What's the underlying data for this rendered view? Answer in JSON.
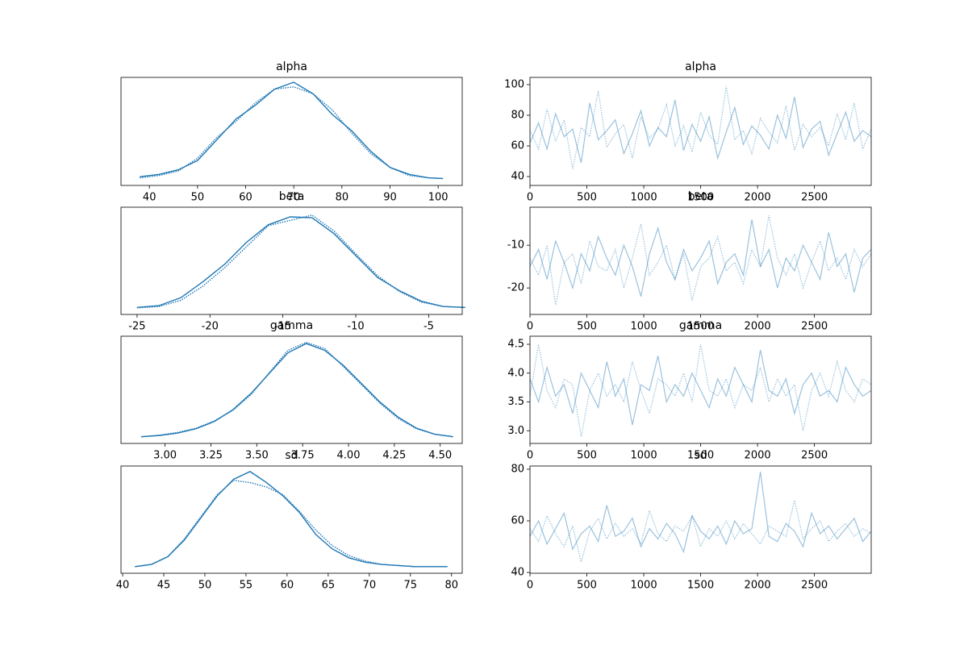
{
  "chart_data": [
    {
      "type": "kde",
      "title": "alpha",
      "x": [
        38,
        42,
        46,
        50,
        54,
        58,
        62,
        66,
        70,
        74,
        78,
        82,
        86,
        90,
        94,
        98,
        101
      ],
      "xlim": [
        34.1,
        105
      ],
      "xticks": [
        40,
        50,
        60,
        70,
        80,
        90,
        100
      ],
      "ylim": [
        -0.0028,
        0.0441
      ],
      "series": [
        {
          "color": "#1f77b4",
          "linestyle": "solid",
          "alpha": 1,
          "values": [
            0.001,
            0.002,
            0.004,
            0.008,
            0.017,
            0.026,
            0.032,
            0.039,
            0.042,
            0.037,
            0.028,
            0.021,
            0.012,
            0.005,
            0.002,
            0.0005,
            0.0002
          ]
        },
        {
          "color": "#1f77b4",
          "linestyle": "dotted",
          "alpha": 1,
          "values": [
            0.0005,
            0.0015,
            0.0035,
            0.009,
            0.018,
            0.025,
            0.033,
            0.039,
            0.04,
            0.037,
            0.03,
            0.02,
            0.011,
            0.005,
            0.0015,
            0.0005,
            0.0002
          ]
        }
      ]
    },
    {
      "type": "trace",
      "title": "alpha",
      "x": [
        0,
        75,
        150,
        225,
        300,
        375,
        450,
        525,
        600,
        675,
        750,
        825,
        900,
        975,
        1050,
        1125,
        1200,
        1275,
        1350,
        1425,
        1500,
        1575,
        1650,
        1725,
        1800,
        1875,
        1950,
        2025,
        2100,
        2175,
        2250,
        2325,
        2400,
        2475,
        2550,
        2625,
        2700,
        2775,
        2850,
        2925,
        2999
      ],
      "xlim": [
        0,
        2999
      ],
      "xticks": [
        0,
        500,
        1000,
        1500,
        2000,
        2500
      ],
      "ylim": [
        34.2,
        104.7
      ],
      "yticks": [
        40,
        60,
        80,
        100
      ],
      "series": [
        {
          "color": "#1f77b4",
          "linestyle": "solid",
          "alpha": 0.45,
          "values": [
            62,
            75,
            58,
            81,
            66,
            71,
            49,
            88,
            64,
            70,
            77,
            55,
            68,
            83,
            60,
            72,
            66,
            90,
            57,
            74,
            63,
            79,
            52,
            69,
            85,
            61,
            73,
            67,
            58,
            80,
            65,
            92,
            59,
            71,
            76,
            54,
            68,
            82,
            63,
            70,
            66
          ]
        },
        {
          "color": "#1f77b4",
          "linestyle": "dotted",
          "alpha": 0.45,
          "values": [
            70,
            58,
            84,
            63,
            77,
            45,
            72,
            66,
            96,
            59,
            68,
            74,
            52,
            79,
            65,
            71,
            87,
            60,
            73,
            56,
            82,
            67,
            61,
            99,
            64,
            70,
            55,
            78,
            69,
            62,
            86,
            57,
            74,
            66,
            72,
            60,
            81,
            64,
            88,
            58,
            71
          ]
        }
      ]
    },
    {
      "type": "kde",
      "title": "beta",
      "x": [
        -25,
        -23.5,
        -22,
        -20.5,
        -19,
        -17.5,
        -16,
        -14.5,
        -13,
        -11.5,
        -10,
        -8.5,
        -7,
        -5.5,
        -4,
        -2.5
      ],
      "xlim": [
        -26.1,
        -2.7
      ],
      "xticks": [
        -25,
        -20,
        -15,
        -10,
        -5
      ],
      "ylim": [
        -0.007,
        0.115
      ],
      "series": [
        {
          "color": "#1f77b4",
          "linestyle": "solid",
          "alpha": 1,
          "values": [
            0.001,
            0.003,
            0.012,
            0.03,
            0.05,
            0.075,
            0.095,
            0.104,
            0.103,
            0.085,
            0.06,
            0.035,
            0.02,
            0.008,
            0.002,
            0.001
          ]
        },
        {
          "color": "#1f77b4",
          "linestyle": "dotted",
          "alpha": 1,
          "values": [
            0.0005,
            0.002,
            0.009,
            0.025,
            0.046,
            0.07,
            0.094,
            0.1,
            0.106,
            0.088,
            0.062,
            0.037,
            0.019,
            0.007,
            0.002,
            0.001
          ]
        }
      ]
    },
    {
      "type": "trace",
      "title": "beta",
      "x": [
        0,
        75,
        150,
        225,
        300,
        375,
        450,
        525,
        600,
        675,
        750,
        825,
        900,
        975,
        1050,
        1125,
        1200,
        1275,
        1350,
        1425,
        1500,
        1575,
        1650,
        1725,
        1800,
        1875,
        1950,
        2025,
        2100,
        2175,
        2250,
        2325,
        2400,
        2475,
        2550,
        2625,
        2700,
        2775,
        2850,
        2925,
        2999
      ],
      "xlim": [
        0,
        2999
      ],
      "xticks": [
        0,
        500,
        1000,
        1500,
        2000,
        2500
      ],
      "ylim": [
        -26.2,
        -1.1
      ],
      "yticks": [
        -20,
        -10
      ],
      "series": [
        {
          "color": "#1f77b4",
          "linestyle": "solid",
          "alpha": 0.45,
          "values": [
            -15,
            -11,
            -18,
            -9,
            -14,
            -20,
            -12,
            -16,
            -8,
            -13,
            -17,
            -10,
            -15,
            -22,
            -12,
            -6,
            -14,
            -18,
            -11,
            -16,
            -13,
            -9,
            -19,
            -14,
            -12,
            -17,
            -4,
            -15,
            -11,
            -20,
            -13,
            -16,
            -10,
            -14,
            -18,
            -7,
            -15,
            -12,
            -21,
            -13,
            -11
          ]
        },
        {
          "color": "#1f77b4",
          "linestyle": "dotted",
          "alpha": 0.45,
          "values": [
            -13,
            -17,
            -10,
            -24,
            -14,
            -12,
            -19,
            -9,
            -15,
            -16,
            -11,
            -20,
            -13,
            -5,
            -17,
            -14,
            -10,
            -18,
            -12,
            -23,
            -15,
            -13,
            -8,
            -16,
            -14,
            -19,
            -11,
            -15,
            -3,
            -13,
            -17,
            -12,
            -20,
            -14,
            -9,
            -16,
            -13,
            -18,
            -11,
            -15,
            -12
          ]
        }
      ]
    },
    {
      "type": "kde",
      "title": "gamma",
      "x": [
        2.87,
        2.97,
        3.07,
        3.17,
        3.27,
        3.37,
        3.47,
        3.57,
        3.67,
        3.77,
        3.87,
        3.97,
        4.07,
        4.17,
        4.27,
        4.37,
        4.47,
        4.57
      ],
      "xlim": [
        2.76,
        4.62
      ],
      "xticks": [
        {
          "value": 3,
          "label": "3.00"
        },
        {
          "value": 3.25,
          "label": "3.25"
        },
        {
          "value": 3.5,
          "label": "3.50"
        },
        {
          "value": 3.75,
          "label": "3.75"
        },
        {
          "value": 4,
          "label": "4.00"
        },
        {
          "value": 4.25,
          "label": "4.25"
        },
        {
          "value": 4.5,
          "label": "4.50"
        }
      ],
      "ylim": [
        -0.1,
        1.65
      ],
      "series": [
        {
          "color": "#1f77b4",
          "linestyle": "solid",
          "alpha": 1,
          "values": [
            0.01,
            0.03,
            0.07,
            0.14,
            0.26,
            0.45,
            0.72,
            1.05,
            1.38,
            1.53,
            1.42,
            1.18,
            0.88,
            0.58,
            0.33,
            0.15,
            0.05,
            0.01
          ]
        },
        {
          "color": "#1f77b4",
          "linestyle": "dotted",
          "alpha": 1,
          "values": [
            0.01,
            0.035,
            0.08,
            0.15,
            0.27,
            0.44,
            0.7,
            1.06,
            1.42,
            1.55,
            1.45,
            1.16,
            0.86,
            0.56,
            0.31,
            0.14,
            0.05,
            0.01
          ]
        }
      ]
    },
    {
      "type": "trace",
      "title": "gamma",
      "x": [
        0,
        75,
        150,
        225,
        300,
        375,
        450,
        525,
        600,
        675,
        750,
        825,
        900,
        975,
        1050,
        1125,
        1200,
        1275,
        1350,
        1425,
        1500,
        1575,
        1650,
        1725,
        1800,
        1875,
        1950,
        2025,
        2100,
        2175,
        2250,
        2325,
        2400,
        2475,
        2550,
        2625,
        2700,
        2775,
        2850,
        2925,
        2999
      ],
      "xlim": [
        0,
        2999
      ],
      "xticks": [
        0,
        500,
        1000,
        1500,
        2000,
        2500
      ],
      "ylim": [
        2.78,
        4.64
      ],
      "yticks": [
        {
          "value": 3,
          "label": "3.0"
        },
        3.5,
        {
          "value": 4,
          "label": "4.0"
        },
        4.5
      ],
      "series": [
        {
          "color": "#1f77b4",
          "linestyle": "solid",
          "alpha": 0.45,
          "values": [
            3.9,
            3.5,
            4.1,
            3.6,
            3.8,
            3.3,
            4.0,
            3.7,
            3.4,
            4.2,
            3.6,
            3.9,
            3.1,
            3.8,
            3.7,
            4.3,
            3.5,
            3.8,
            3.6,
            4.0,
            3.7,
            3.4,
            3.9,
            3.6,
            4.1,
            3.8,
            3.5,
            4.4,
            3.7,
            3.6,
            3.9,
            3.3,
            3.8,
            4.0,
            3.6,
            3.7,
            3.5,
            4.1,
            3.8,
            3.6,
            3.7
          ]
        },
        {
          "color": "#1f77b4",
          "linestyle": "dotted",
          "alpha": 0.45,
          "values": [
            3.6,
            4.5,
            3.7,
            3.4,
            3.9,
            3.8,
            2.9,
            3.7,
            4.0,
            3.6,
            3.8,
            3.5,
            4.2,
            3.7,
            3.3,
            3.9,
            3.8,
            3.6,
            4.0,
            3.5,
            4.5,
            3.7,
            3.6,
            3.9,
            3.4,
            3.8,
            3.7,
            4.1,
            3.5,
            3.9,
            3.6,
            3.8,
            3.0,
            3.7,
            4.0,
            3.6,
            4.2,
            3.7,
            3.5,
            3.9,
            3.8
          ]
        }
      ]
    },
    {
      "type": "kde",
      "title": "sd",
      "x": [
        41.5,
        43.5,
        45.5,
        47.5,
        49.5,
        51.5,
        53.5,
        55.5,
        57.5,
        59.5,
        61.5,
        63.5,
        65.5,
        67.5,
        69.5,
        71.5,
        73.5,
        75.5,
        77.5,
        79.5
      ],
      "xlim": [
        39.8,
        81.3
      ],
      "xticks": [
        40,
        45,
        50,
        55,
        60,
        65,
        70,
        75,
        80
      ],
      "ylim": [
        -0.005,
        0.092
      ],
      "series": [
        {
          "color": "#1f77b4",
          "linestyle": "solid",
          "alpha": 1,
          "values": [
            0.001,
            0.003,
            0.01,
            0.025,
            0.045,
            0.065,
            0.08,
            0.087,
            0.077,
            0.065,
            0.05,
            0.03,
            0.017,
            0.009,
            0.005,
            0.003,
            0.002,
            0.001,
            0.001,
            0.001
          ]
        },
        {
          "color": "#1f77b4",
          "linestyle": "dotted",
          "alpha": 1,
          "values": [
            0.001,
            0.003,
            0.01,
            0.026,
            0.046,
            0.066,
            0.079,
            0.077,
            0.073,
            0.066,
            0.051,
            0.034,
            0.02,
            0.011,
            0.006,
            0.003,
            0.002,
            0.001,
            0.001,
            0.001
          ]
        }
      ]
    },
    {
      "type": "trace",
      "title": "sd",
      "x": [
        0,
        75,
        150,
        225,
        300,
        375,
        450,
        525,
        600,
        675,
        750,
        825,
        900,
        975,
        1050,
        1125,
        1200,
        1275,
        1350,
        1425,
        1500,
        1575,
        1650,
        1725,
        1800,
        1875,
        1950,
        2025,
        2100,
        2175,
        2250,
        2325,
        2400,
        2475,
        2550,
        2625,
        2700,
        2775,
        2850,
        2925,
        2999
      ],
      "xlim": [
        0,
        2999
      ],
      "xticks": [
        0,
        500,
        1000,
        1500,
        2000,
        2500
      ],
      "ylim": [
        39.7,
        81.25
      ],
      "yticks": [
        40,
        60,
        80
      ],
      "series": [
        {
          "color": "#1f77b4",
          "linestyle": "solid",
          "alpha": 0.45,
          "values": [
            54,
            60,
            51,
            57,
            63,
            49,
            55,
            58,
            52,
            66,
            54,
            56,
            61,
            50,
            57,
            53,
            59,
            55,
            48,
            62,
            56,
            53,
            58,
            51,
            60,
            55,
            57,
            79,
            54,
            52,
            59,
            56,
            50,
            63,
            55,
            58,
            53,
            57,
            61,
            52,
            56
          ]
        },
        {
          "color": "#1f77b4",
          "linestyle": "dotted",
          "alpha": 0.45,
          "values": [
            57,
            52,
            62,
            55,
            50,
            58,
            44,
            56,
            61,
            53,
            59,
            54,
            57,
            51,
            64,
            55,
            52,
            58,
            56,
            62,
            50,
            57,
            54,
            60,
            53,
            59,
            55,
            51,
            58,
            56,
            54,
            68,
            53,
            57,
            60,
            52,
            56,
            59,
            54,
            57,
            55
          ]
        }
      ]
    }
  ]
}
